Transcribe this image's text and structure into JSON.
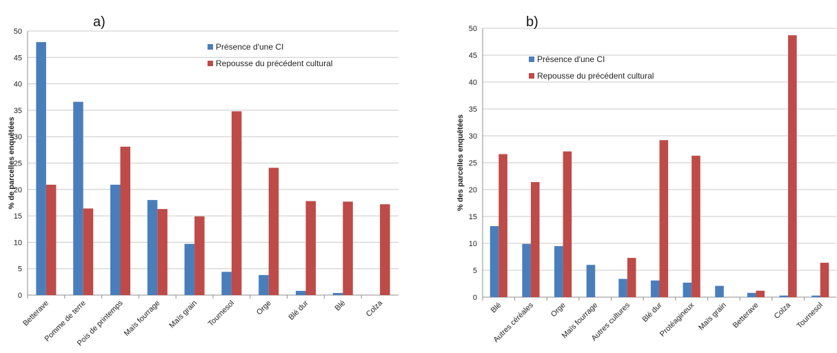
{
  "colors": {
    "series1": "#4a7ebb",
    "series2": "#be4b48",
    "grid": "#c8c8c8",
    "axis": "#8c8c8c"
  },
  "chart_data": [
    {
      "type": "bar",
      "panel_label": "a)",
      "title": "",
      "xlabel": "",
      "ylabel": "% de parcelles enquêtées",
      "ylim": [
        0,
        50
      ],
      "yticks": [
        0,
        5,
        10,
        15,
        20,
        25,
        30,
        35,
        40,
        45,
        50
      ],
      "grid": true,
      "legend_position": "top-right",
      "categories": [
        "Betterave",
        "Pomme de terre",
        "Pois de printemps",
        "Maïs fourrage",
        "Maïs grain",
        "Tournesol",
        "Orge",
        "Blé dur",
        "Blé",
        "Colza"
      ],
      "series": [
        {
          "name": "Présence d'une CI",
          "values": [
            47.9,
            36.6,
            20.9,
            18.0,
            9.7,
            4.4,
            3.8,
            0.8,
            0.4,
            0.0
          ]
        },
        {
          "name": "Repousse du précédent cultural",
          "values": [
            20.9,
            16.4,
            28.1,
            16.3,
            14.9,
            34.8,
            24.1,
            17.8,
            17.7,
            17.2
          ]
        }
      ]
    },
    {
      "type": "bar",
      "panel_label": "b)",
      "title": "",
      "xlabel": "",
      "ylabel": "% des parcelles enquêtées",
      "ylim": [
        0,
        50
      ],
      "yticks": [
        0,
        5,
        10,
        15,
        20,
        25,
        30,
        35,
        40,
        45,
        50
      ],
      "grid": true,
      "legend_position": "top-left",
      "categories": [
        "Blé",
        "Autres céréales",
        "Orge",
        "Maïs fourrage",
        "Autres cultures",
        "Blé dur",
        "Protéagineux",
        "Maïs grain",
        "Betterave",
        "Colza",
        "Tournesol"
      ],
      "series": [
        {
          "name": "Présence d'une CI",
          "values": [
            13.2,
            9.9,
            9.5,
            6.0,
            3.4,
            3.1,
            2.7,
            2.1,
            0.8,
            0.3,
            0.3
          ]
        },
        {
          "name": "Repousse du précédent cultural",
          "values": [
            26.6,
            21.4,
            27.1,
            0.0,
            7.3,
            29.2,
            26.3,
            0.0,
            1.2,
            48.7,
            6.4
          ]
        }
      ]
    }
  ]
}
